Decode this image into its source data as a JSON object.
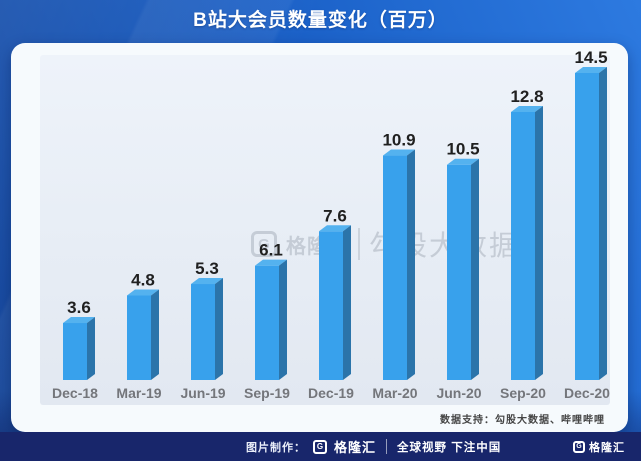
{
  "page": {
    "title": "B站大会员数量变化（百万）"
  },
  "chart_data": {
    "type": "bar",
    "title": "B站大会员数量变化（百万）",
    "categories": [
      "Dec-18",
      "Mar-19",
      "Jun-19",
      "Sep-19",
      "Dec-19",
      "Mar-20",
      "Jun-20",
      "Sep-20",
      "Dec-20"
    ],
    "values": [
      3.6,
      4.8,
      5.3,
      6.1,
      7.6,
      10.9,
      10.5,
      12.8,
      14.5
    ],
    "xlabel": "",
    "ylabel": "",
    "unit": "百万",
    "ylim": [
      0,
      16
    ],
    "grid": false,
    "legend": "none",
    "style_3d": true,
    "colors": {
      "bar_front": "#38a1ec",
      "bar_side": "#2b74aa",
      "bar_top": "#54b2ef",
      "value_label": "#202020",
      "axis_label": "#74767b"
    }
  },
  "watermark": {
    "logo_letter": "G",
    "brand": "格隆汇",
    "label": "勾股大数据"
  },
  "note": {
    "text": "数据支持：勾股大数据、哔哩哔哩"
  },
  "footer": {
    "made_by_label": "图片制作：",
    "logo_letter": "G",
    "brand": "格隆汇",
    "slogan": "全球视野 下注中国",
    "right_logo_letter": "G",
    "right_brand": "格隆汇"
  }
}
